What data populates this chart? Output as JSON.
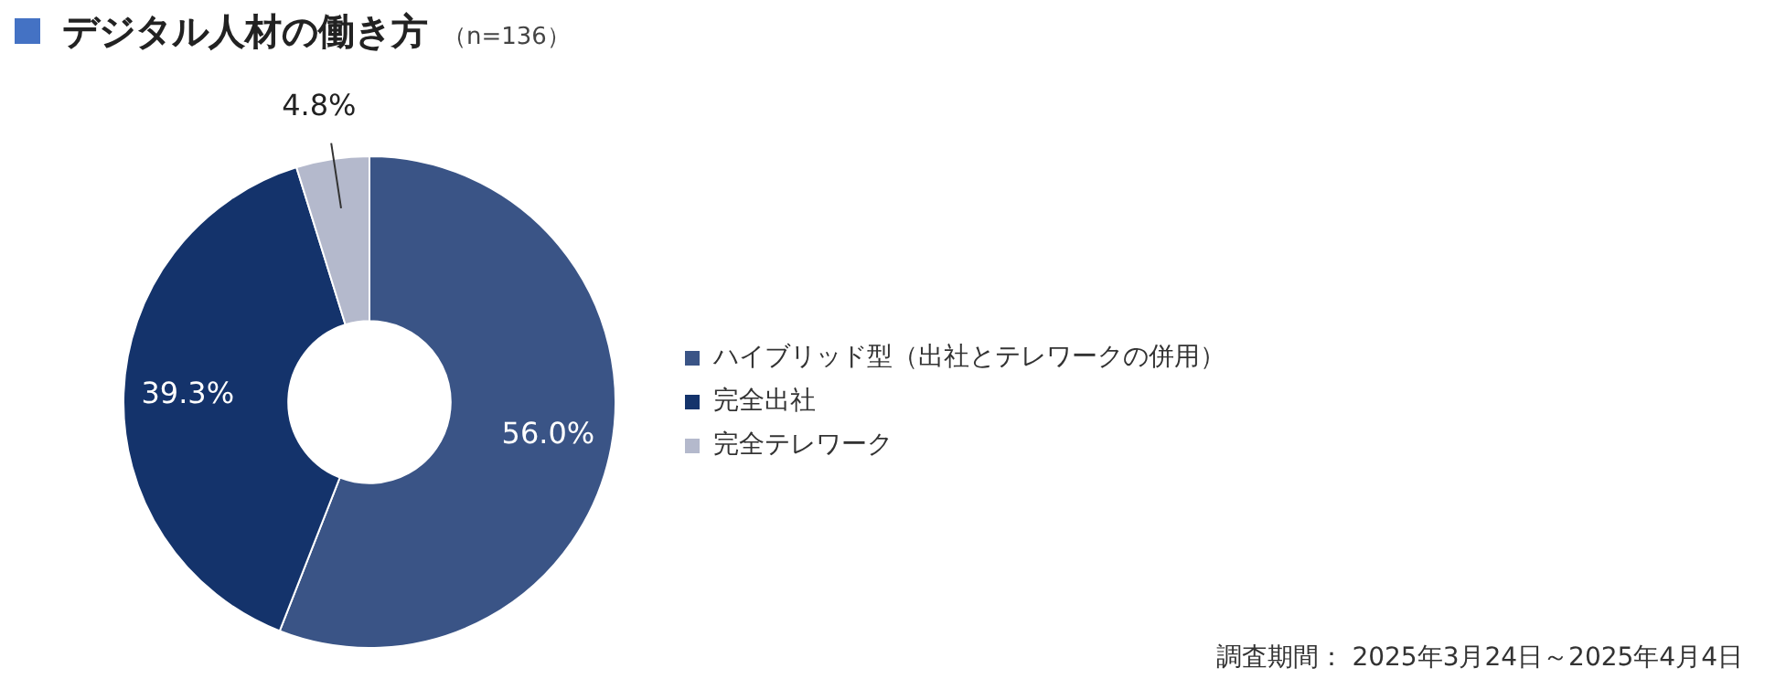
{
  "chart_data": {
    "type": "donut",
    "title": "デジタル人材の働き方",
    "subtitle": "（n=136）",
    "categories": [
      "ハイブリッド型（出社とテレワークの併用）",
      "完全出社",
      "完全テレワーク"
    ],
    "values": [
      56.0,
      39.3,
      4.8
    ],
    "colors": [
      "#3a5486",
      "#14336b",
      "#b4b9cc"
    ],
    "value_labels": [
      "56.0%",
      "39.3%",
      "4.8%"
    ],
    "legend": "right",
    "annotations": [
      "調査期間： 2025年3月24日～2025年4月4日"
    ]
  }
}
